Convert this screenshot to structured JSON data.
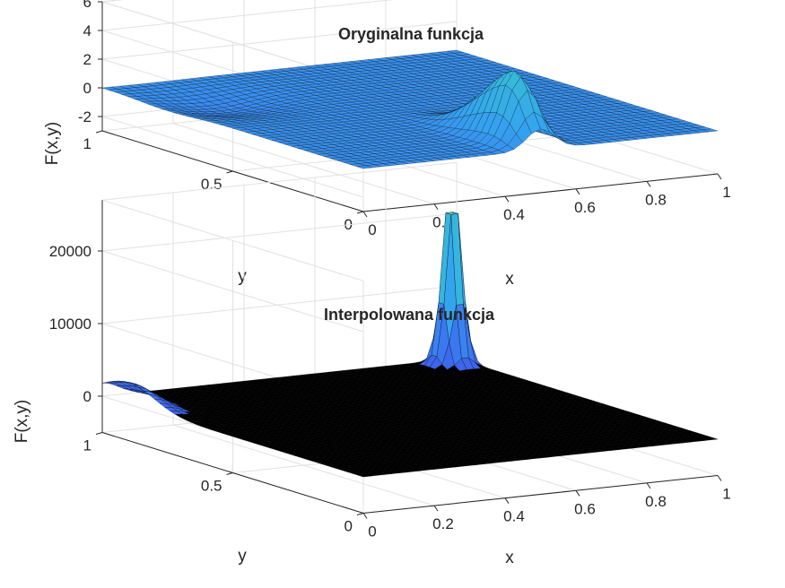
{
  "chart_data": [
    {
      "type": "surface",
      "title": "Oryginalna funkcja",
      "xlabel": "x",
      "ylabel": "y",
      "zlabel": "F(x,y)",
      "xlim": [
        0,
        1
      ],
      "ylim": [
        0,
        1
      ],
      "zlim": [
        -3,
        6
      ],
      "xticks": [
        0,
        0.2,
        0.4,
        0.6,
        0.8,
        1
      ],
      "xtick_labels": [
        "0",
        "0.2",
        "0.4",
        "0.6",
        "0.8",
        "1"
      ],
      "yticks": [
        0,
        0.5,
        1
      ],
      "ytick_labels": [
        "0",
        "0.5",
        "1"
      ],
      "zticks": [
        -2,
        0,
        2,
        4,
        6
      ],
      "ztick_labels": [
        "-2",
        "0",
        "2",
        "4",
        "6"
      ],
      "grid": true,
      "colormap": [
        "#3b2fd6",
        "#3d6df0",
        "#35a3ef",
        "#37c4cf",
        "#8ad36a"
      ],
      "features": {
        "peak": {
          "x": 0.5,
          "y": 0.05,
          "z": 5.0
        },
        "trough": {
          "x": 0.5,
          "y": 0.05,
          "z": -2.3
        }
      }
    },
    {
      "type": "surface",
      "title": "Interpolowana funkcja",
      "xlabel": "x",
      "ylabel": "y",
      "zlabel": "F(x,y)",
      "xlim": [
        0,
        1
      ],
      "ylim": [
        0,
        1
      ],
      "zlim": [
        -5000,
        27000
      ],
      "xticks": [
        0,
        0.2,
        0.4,
        0.6,
        0.8,
        1
      ],
      "xtick_labels": [
        "0",
        "0.2",
        "0.4",
        "0.6",
        "0.8",
        "1"
      ],
      "yticks": [
        0,
        0.5,
        1
      ],
      "ytick_labels": [
        "0",
        "0.5",
        "1"
      ],
      "zticks": [
        0,
        10000,
        20000
      ],
      "ztick_labels": [
        "0",
        "10000",
        "20000"
      ],
      "grid": true,
      "colormap": [
        "#3b2fd6",
        "#3d6df0",
        "#35a3ef",
        "#37c4cf",
        "#f2e51f"
      ],
      "features": {
        "peak": {
          "x": 0.95,
          "y": 0.95,
          "z": 26000
        },
        "bump": {
          "x": 0.0,
          "y": 0.9,
          "z": 3000
        }
      }
    }
  ]
}
